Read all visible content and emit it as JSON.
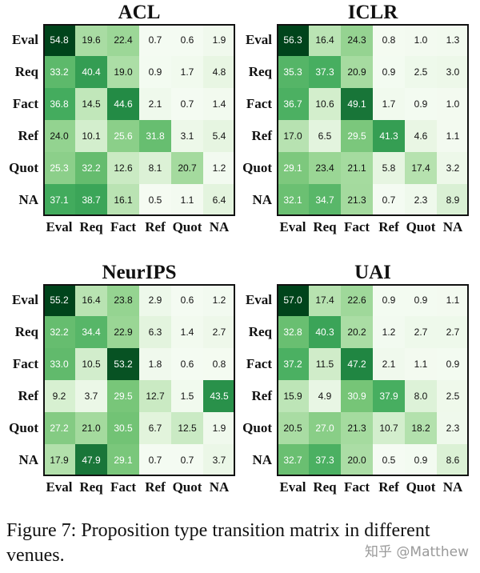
{
  "chart_data": [
    {
      "type": "heatmap",
      "title": "ACL",
      "row_labels": [
        "Eval",
        "Req",
        "Fact",
        "Ref",
        "Quot",
        "NA"
      ],
      "col_labels": [
        "Eval",
        "Req",
        "Fact",
        "Ref",
        "Quot",
        "NA"
      ],
      "values": [
        [
          54.8,
          19.6,
          22.4,
          0.7,
          0.6,
          1.9
        ],
        [
          33.2,
          40.4,
          19.0,
          0.9,
          1.7,
          4.8
        ],
        [
          36.8,
          14.5,
          44.6,
          2.1,
          0.7,
          1.4
        ],
        [
          24.0,
          10.1,
          25.6,
          31.8,
          3.1,
          5.4
        ],
        [
          25.3,
          32.2,
          12.6,
          8.1,
          20.7,
          1.2
        ],
        [
          37.1,
          38.7,
          16.1,
          0.5,
          1.1,
          6.4
        ]
      ],
      "colormap": "greens"
    },
    {
      "type": "heatmap",
      "title": "ICLR",
      "row_labels": [
        "Eval",
        "Req",
        "Fact",
        "Ref",
        "Quot",
        "NA"
      ],
      "col_labels": [
        "Eval",
        "Req",
        "Fact",
        "Ref",
        "Quot",
        "NA"
      ],
      "values": [
        [
          56.3,
          16.4,
          24.3,
          0.8,
          1.0,
          1.3
        ],
        [
          35.3,
          37.3,
          20.9,
          0.9,
          2.5,
          3.0
        ],
        [
          36.7,
          10.6,
          49.1,
          1.7,
          0.9,
          1.0
        ],
        [
          17.0,
          6.5,
          29.5,
          41.3,
          4.6,
          1.1
        ],
        [
          29.1,
          23.4,
          21.1,
          5.8,
          17.4,
          3.2
        ],
        [
          32.1,
          34.7,
          21.3,
          0.7,
          2.3,
          8.9
        ]
      ],
      "colormap": "greens"
    },
    {
      "type": "heatmap",
      "title": "NeurIPS",
      "row_labels": [
        "Eval",
        "Req",
        "Fact",
        "Ref",
        "Quot",
        "NA"
      ],
      "col_labels": [
        "Eval",
        "Req",
        "Fact",
        "Ref",
        "Quot",
        "NA"
      ],
      "values": [
        [
          55.2,
          16.4,
          23.8,
          2.9,
          0.6,
          1.2
        ],
        [
          32.2,
          34.4,
          22.9,
          6.3,
          1.4,
          2.7
        ],
        [
          33.0,
          10.5,
          53.2,
          1.8,
          0.6,
          0.8
        ],
        [
          9.2,
          3.7,
          29.5,
          12.7,
          1.5,
          43.5
        ],
        [
          27.2,
          21.0,
          30.5,
          6.7,
          12.5,
          1.9
        ],
        [
          17.9,
          47.9,
          29.1,
          0.7,
          0.7,
          3.7
        ]
      ],
      "colormap": "greens"
    },
    {
      "type": "heatmap",
      "title": "UAI",
      "row_labels": [
        "Eval",
        "Req",
        "Fact",
        "Ref",
        "Quot",
        "NA"
      ],
      "col_labels": [
        "Eval",
        "Req",
        "Fact",
        "Ref",
        "Quot",
        "NA"
      ],
      "values": [
        [
          57.0,
          17.4,
          22.6,
          0.9,
          0.9,
          1.1
        ],
        [
          32.8,
          40.3,
          20.2,
          1.2,
          2.7,
          2.7
        ],
        [
          37.2,
          11.5,
          47.2,
          2.1,
          1.1,
          0.9
        ],
        [
          15.9,
          4.9,
          30.9,
          37.9,
          8.0,
          2.5
        ],
        [
          20.5,
          27.0,
          21.3,
          10.7,
          18.2,
          2.3
        ],
        [
          32.7,
          37.3,
          20.0,
          0.5,
          0.9,
          8.6
        ]
      ],
      "colormap": "greens"
    }
  ],
  "caption": "Figure 7: Proposition type transition matrix in different venues.",
  "watermark": "知乎 @Matthew"
}
